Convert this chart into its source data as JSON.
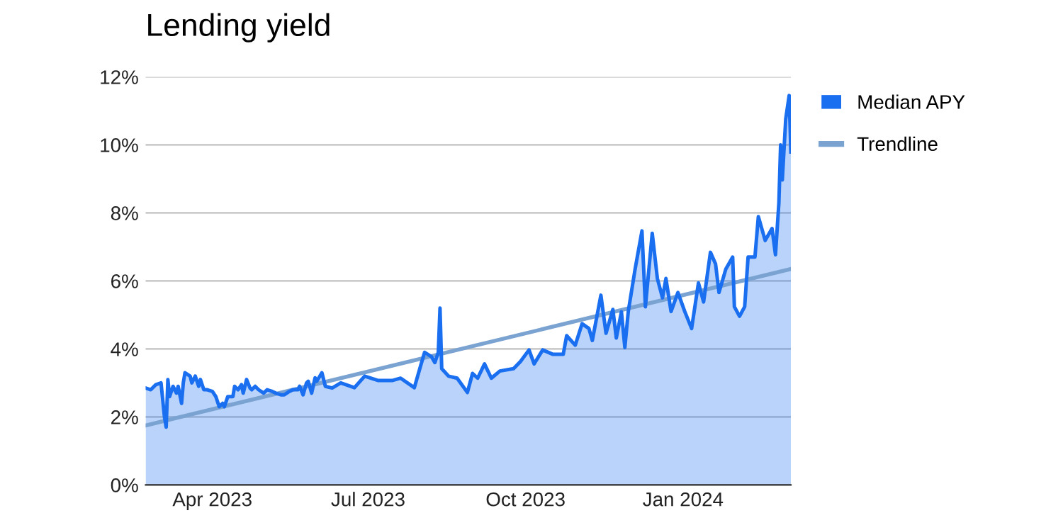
{
  "chart_data": {
    "type": "area",
    "title": "Lending yield",
    "series": [
      {
        "name": "Median APY",
        "color": "#1a6ef0",
        "x": [
          "2023-02-21",
          "2023-02-24",
          "2023-02-27",
          "2023-03-02",
          "2023-03-04",
          "2023-03-05",
          "2023-03-06",
          "2023-03-07",
          "2023-03-09",
          "2023-03-11",
          "2023-03-12",
          "2023-03-14",
          "2023-03-15",
          "2023-03-16",
          "2023-03-19",
          "2023-03-20",
          "2023-03-22",
          "2023-03-24",
          "2023-03-25",
          "2023-03-27",
          "2023-03-29",
          "2023-04-01",
          "2023-04-03",
          "2023-04-05",
          "2023-04-07",
          "2023-04-08",
          "2023-04-10",
          "2023-04-13",
          "2023-04-14",
          "2023-04-16",
          "2023-04-18",
          "2023-04-19",
          "2023-04-21",
          "2023-04-23",
          "2023-04-24",
          "2023-04-26",
          "2023-04-28",
          "2023-05-01",
          "2023-05-03",
          "2023-05-06",
          "2023-05-08",
          "2023-05-11",
          "2023-05-13",
          "2023-05-16",
          "2023-05-18",
          "2023-05-21",
          "2023-05-22",
          "2023-05-24",
          "2023-05-26",
          "2023-05-27",
          "2023-05-29",
          "2023-05-31",
          "2023-06-01",
          "2023-06-04",
          "2023-06-06",
          "2023-06-10",
          "2023-06-15",
          "2023-06-23",
          "2023-06-29",
          "2023-07-07",
          "2023-07-15",
          "2023-07-20",
          "2023-07-28",
          "2023-08-01",
          "2023-08-03",
          "2023-08-07",
          "2023-08-09",
          "2023-08-11",
          "2023-08-12",
          "2023-08-13",
          "2023-08-17",
          "2023-08-22",
          "2023-08-28",
          "2023-08-31",
          "2023-09-03",
          "2023-09-07",
          "2023-09-11",
          "2023-09-16",
          "2023-09-24",
          "2023-09-28",
          "2023-10-03",
          "2023-10-06",
          "2023-10-11",
          "2023-10-17",
          "2023-10-23",
          "2023-10-25",
          "2023-10-30",
          "2023-11-03",
          "2023-11-07",
          "2023-11-09",
          "2023-11-14",
          "2023-11-17",
          "2023-11-21",
          "2023-11-23",
          "2023-11-26",
          "2023-11-28",
          "2023-11-30",
          "2023-12-04",
          "2023-12-08",
          "2023-12-10",
          "2023-12-14",
          "2023-12-17",
          "2023-12-20",
          "2023-12-22",
          "2023-12-25",
          "2023-12-29",
          "2024-01-02",
          "2024-01-06",
          "2024-01-10",
          "2024-01-13",
          "2024-01-17",
          "2024-01-20",
          "2024-01-22",
          "2024-01-26",
          "2024-01-30",
          "2024-01-31",
          "2024-02-03",
          "2024-02-06",
          "2024-02-08",
          "2024-02-12",
          "2024-02-14",
          "2024-02-18",
          "2024-02-22",
          "2024-02-24",
          "2024-02-26",
          "2024-02-27",
          "2024-02-28",
          "2024-03-01",
          "2024-03-03",
          "2024-03-04"
        ],
        "values": [
          2.85,
          2.8,
          2.95,
          3.0,
          2.0,
          1.7,
          3.1,
          2.6,
          2.9,
          2.7,
          2.9,
          2.4,
          3.0,
          3.3,
          3.2,
          3.0,
          3.2,
          2.9,
          3.1,
          2.8,
          2.8,
          2.75,
          2.6,
          2.3,
          2.4,
          2.3,
          2.6,
          2.6,
          2.9,
          2.8,
          2.95,
          2.7,
          3.1,
          2.85,
          2.8,
          2.9,
          2.8,
          2.7,
          2.8,
          2.75,
          2.7,
          2.65,
          2.65,
          2.75,
          2.8,
          2.8,
          2.9,
          2.65,
          3.0,
          3.05,
          2.7,
          3.15,
          3.05,
          3.3,
          2.9,
          2.85,
          3.0,
          2.86,
          3.2,
          3.07,
          3.07,
          3.14,
          2.86,
          3.56,
          3.9,
          3.77,
          3.6,
          3.9,
          5.2,
          3.42,
          3.2,
          3.14,
          2.72,
          3.28,
          3.14,
          3.56,
          3.14,
          3.35,
          3.42,
          3.63,
          3.97,
          3.56,
          3.97,
          3.84,
          3.84,
          4.39,
          4.11,
          4.74,
          4.6,
          4.25,
          5.58,
          4.46,
          5.16,
          4.32,
          5.09,
          4.04,
          5.1,
          6.35,
          7.47,
          5.24,
          7.4,
          6.07,
          5.5,
          6.07,
          5.1,
          5.66,
          5.1,
          4.6,
          5.94,
          5.38,
          6.84,
          6.5,
          5.66,
          6.35,
          6.7,
          5.24,
          4.96,
          5.24,
          6.7,
          6.7,
          7.89,
          7.19,
          7.54,
          6.77,
          8.3,
          10.0,
          8.97,
          10.76,
          11.45,
          9.79
        ]
      },
      {
        "name": "Trendline",
        "type": "line",
        "color": "#7ba3d2",
        "x": [
          "2023-02-21",
          "2024-03-04"
        ],
        "values": [
          1.75,
          6.35
        ]
      }
    ],
    "xlim": [
      "2023-02-21",
      "2024-03-04"
    ],
    "xticks": [
      {
        "value": "2023-04-01",
        "label": "Apr 2023"
      },
      {
        "value": "2023-07-01",
        "label": "Jul 2023"
      },
      {
        "value": "2023-10-01",
        "label": "Oct 2023"
      },
      {
        "value": "2024-01-01",
        "label": "Jan 2024"
      }
    ],
    "ylim": [
      0,
      12
    ],
    "yticks": [
      {
        "value": 0,
        "label": "0%"
      },
      {
        "value": 2,
        "label": "2%"
      },
      {
        "value": 4,
        "label": "4%"
      },
      {
        "value": 6,
        "label": "6%"
      },
      {
        "value": 8,
        "label": "8%"
      },
      {
        "value": 10,
        "label": "10%"
      },
      {
        "value": 12,
        "label": "12%"
      }
    ],
    "grid": "y",
    "legend": "right"
  }
}
